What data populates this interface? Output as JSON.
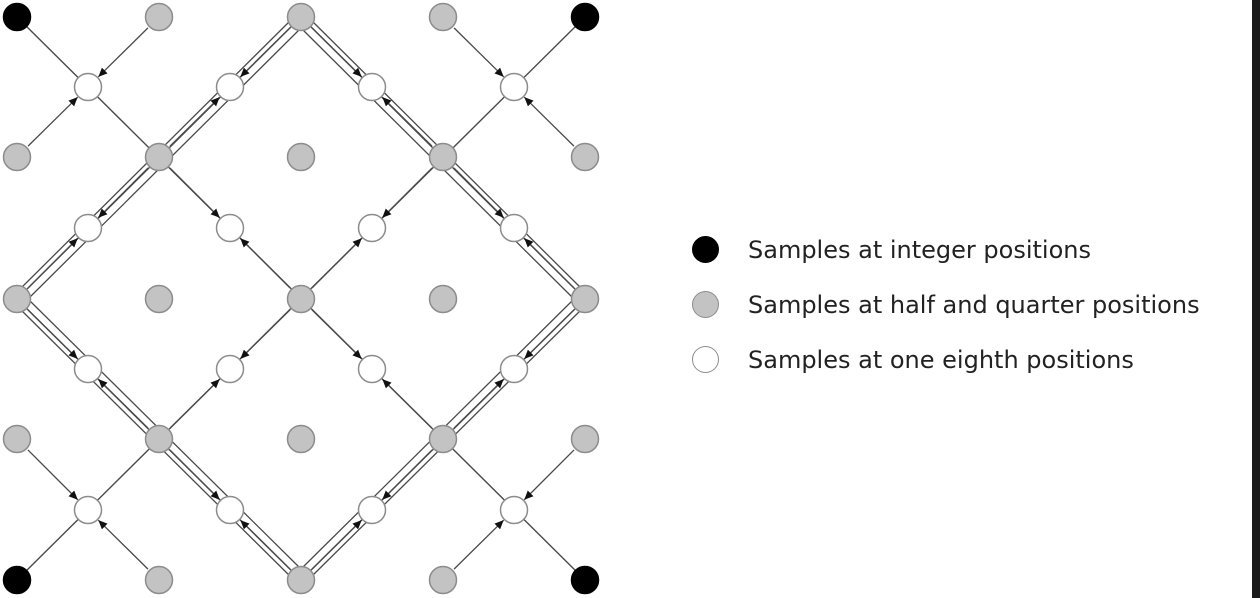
{
  "colors": {
    "integer": "#000000",
    "half_quarter": "#c3c3c3",
    "eighth": "#ffffff",
    "sample_stroke": "#8c8c8c",
    "line": "#4a4a4a"
  },
  "legend": {
    "items": [
      {
        "label": "Samples at integer positions",
        "kind": "integer"
      },
      {
        "label": "Samples at half and quarter positions",
        "kind": "half_quarter"
      },
      {
        "label": "Samples at one eighth positions",
        "kind": "eighth"
      }
    ]
  }
}
